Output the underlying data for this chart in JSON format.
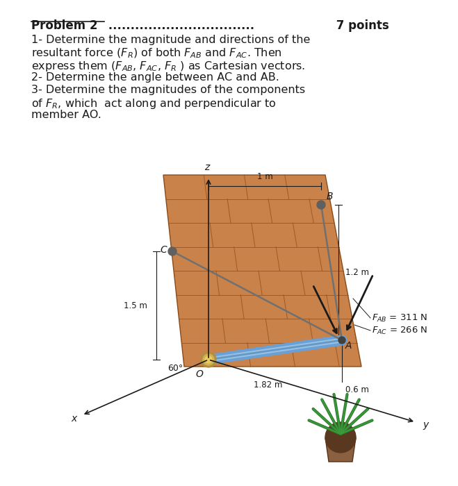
{
  "bg_color": "#ffffff",
  "title_text": "Problem 2",
  "title_dots": " .................................",
  "title_points": " 7 points",
  "line1": "1- Determine the magnitude and directions of the",
  "line2": "resultant force ($F_R$) of both $F_{AB}$ and $F_{AC}$. Then",
  "line3": "express them ($F_{AB}$, $F_{AC}$, $F_R$ ) as Cartesian vectors.",
  "line4": "2- Determine the angle between AC and AB.",
  "line5": "3- Determine the magnitudes of the components",
  "line6": "of $F_R$, which  act along and perpendicular to",
  "line7": "member AO.",
  "fab_label": "$F_{AB}$ = 311 N",
  "fac_label": "$F_{AC}$ = 266 N",
  "dim_1m": "1 m",
  "dim_12m": "1.2 m",
  "dim_15m": "1.5 m",
  "dim_182m": "1.82 m",
  "dim_06m": "0.6 m",
  "angle_label": "60°",
  "label_B": "B",
  "label_C": "C",
  "label_O": "O",
  "label_A": "A",
  "label_x": "x",
  "label_y": "y",
  "label_z": "z",
  "wall_color": "#c8824a",
  "brick_line_color": "#9a5520",
  "cable_color": "#707070",
  "pipe_color": "#6aa0d4",
  "pipe_color2": "#3a70a0",
  "text_color": "#1a1a1a",
  "font_size_main": 11.5,
  "font_size_small": 9.5
}
